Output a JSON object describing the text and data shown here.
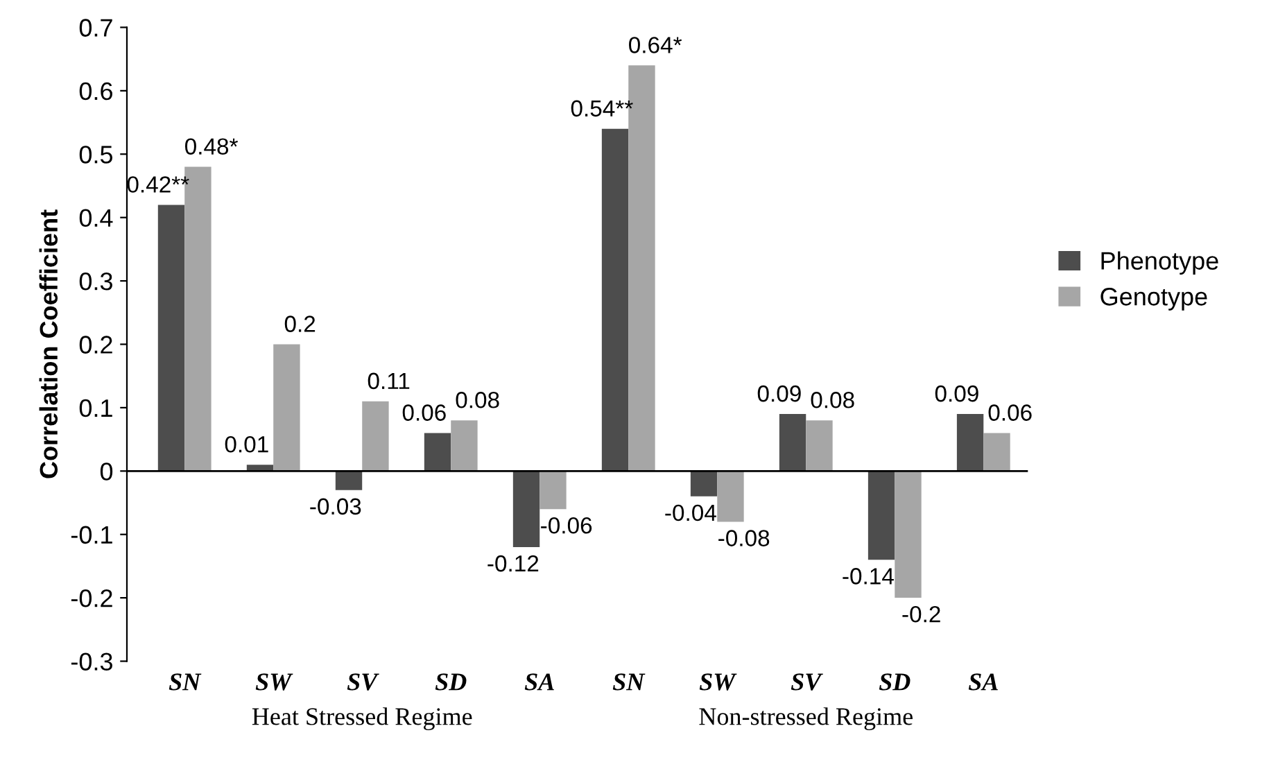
{
  "chart_data": {
    "type": "bar",
    "ylabel": "Correlation Coefficient",
    "categories": [
      "SN",
      "SW",
      "SV",
      "SD",
      "SA",
      "SN",
      "SW",
      "SV",
      "SD",
      "SA"
    ],
    "series": [
      {
        "name": "Phenotype",
        "color": "#4d4d4d",
        "values": [
          0.42,
          0.01,
          -0.03,
          0.06,
          -0.12,
          0.54,
          -0.04,
          0.09,
          -0.14,
          0.09
        ],
        "value_labels": [
          "0.42**",
          "0.01",
          "-0.03",
          "0.06",
          "-0.12",
          "0.54**",
          "-0.04",
          "0.09",
          "-0.14",
          "0.09"
        ]
      },
      {
        "name": "Genotype",
        "color": "#a6a6a6",
        "values": [
          0.48,
          0.2,
          0.11,
          0.08,
          -0.06,
          0.64,
          -0.08,
          0.08,
          -0.2,
          0.06
        ],
        "value_labels": [
          "0.48*",
          "0.2",
          "0.11",
          "0.08",
          "-0.06",
          "0.64*",
          "-0.08",
          "0.08",
          "-0.2",
          "0.06"
        ]
      }
    ],
    "ylim": [
      -0.3,
      0.7
    ],
    "yticks": [
      -0.3,
      -0.2,
      -0.1,
      0,
      0.1,
      0.2,
      0.3,
      0.4,
      0.5,
      0.6,
      0.7
    ],
    "grid": false,
    "legend": "right",
    "ref_lines": [
      {
        "axis": "y",
        "value": 0,
        "color": "#000000"
      }
    ],
    "annotations": [
      "Heat Stressed Regime",
      "Non-stressed Regime"
    ]
  }
}
